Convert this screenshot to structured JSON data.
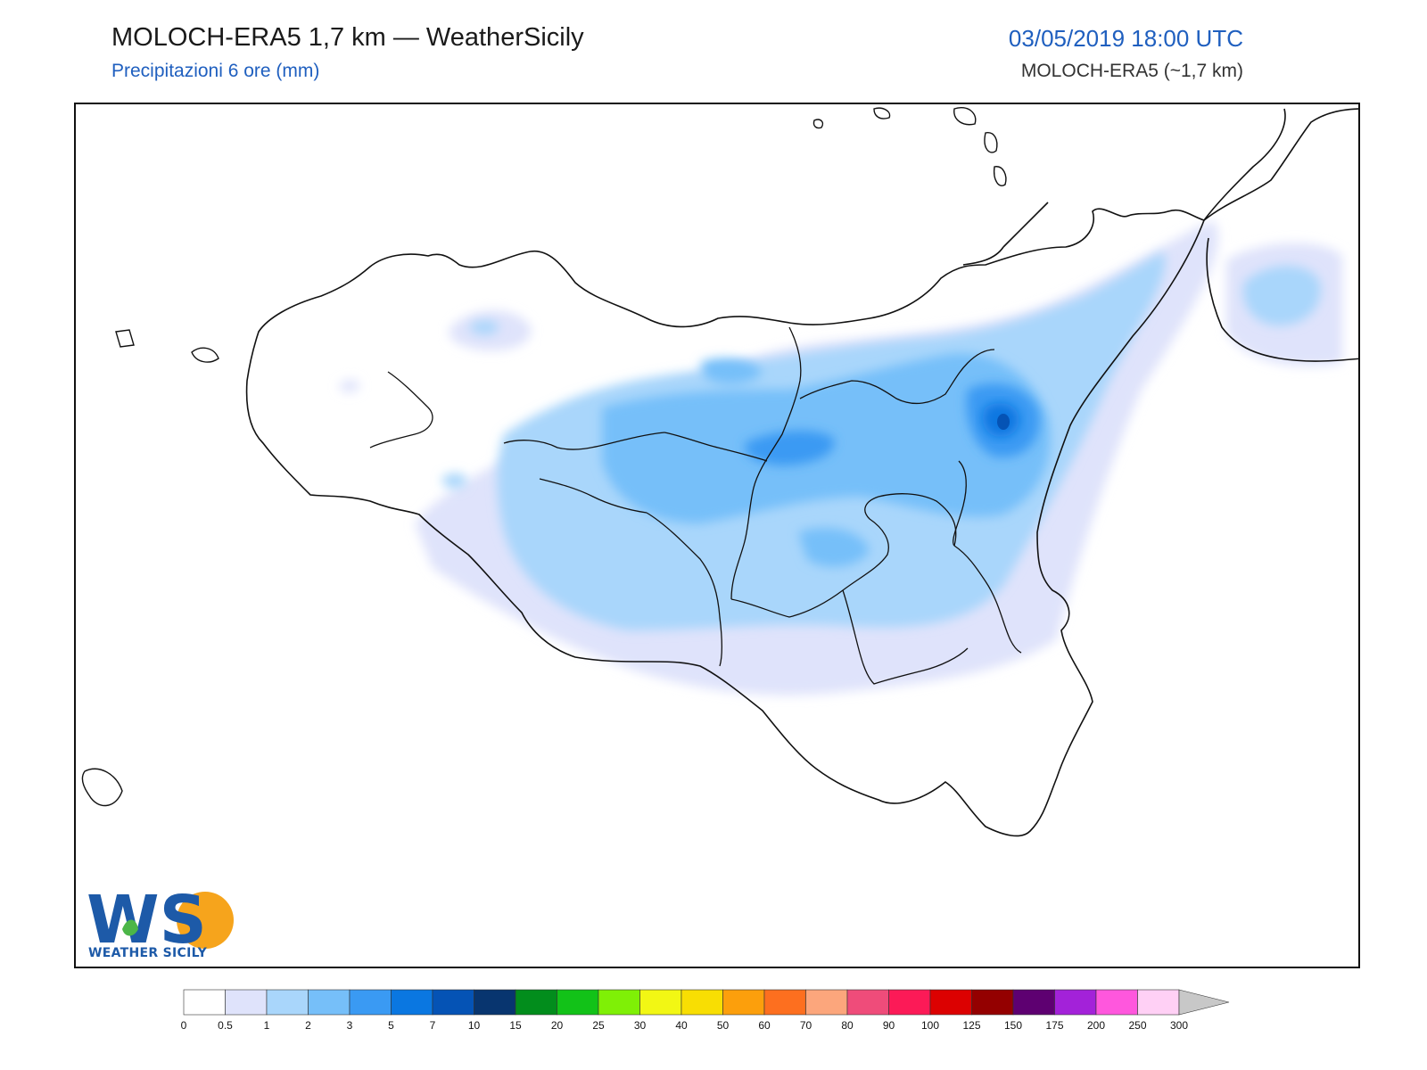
{
  "header": {
    "title": "MOLOCH-ERA5 1,7 km — WeatherSicily",
    "subtitle": "Precipitazioni 6 ore (mm)",
    "datetime": "03/05/2019 18:00 UTC",
    "model": "MOLOCH-ERA5 (~1,7 km)"
  },
  "logo": {
    "mark": "WS",
    "name": "WEATHER SICILY",
    "icon": "weathersicily-logo-icon"
  },
  "map": {
    "region": "Sicily",
    "variable": "6-hour precipitation",
    "units": "mm",
    "peak_area": "Mount Etna area"
  },
  "legend": {
    "labels": [
      "0",
      "0.5",
      "1",
      "2",
      "3",
      "5",
      "7",
      "10",
      "15",
      "20",
      "25",
      "30",
      "40",
      "50",
      "60",
      "70",
      "80",
      "90",
      "100",
      "125",
      "150",
      "175",
      "200",
      "250",
      "300"
    ],
    "colors": [
      "#ffffff",
      "#dfe3fb",
      "#a9d6fb",
      "#76bff9",
      "#3a9af3",
      "#0a77e1",
      "#0553b5",
      "#08356f",
      "#028d1c",
      "#12c218",
      "#7ff006",
      "#f2f714",
      "#f8de03",
      "#fc9f0c",
      "#fd6f1f",
      "#fca67c",
      "#ef4c7a",
      "#fc1a57",
      "#dc0101",
      "#940000",
      "#5e0071",
      "#a322d9",
      "#ff57dd",
      "#ffd0f5"
    ],
    "extend_color": "#c8c8c8"
  }
}
